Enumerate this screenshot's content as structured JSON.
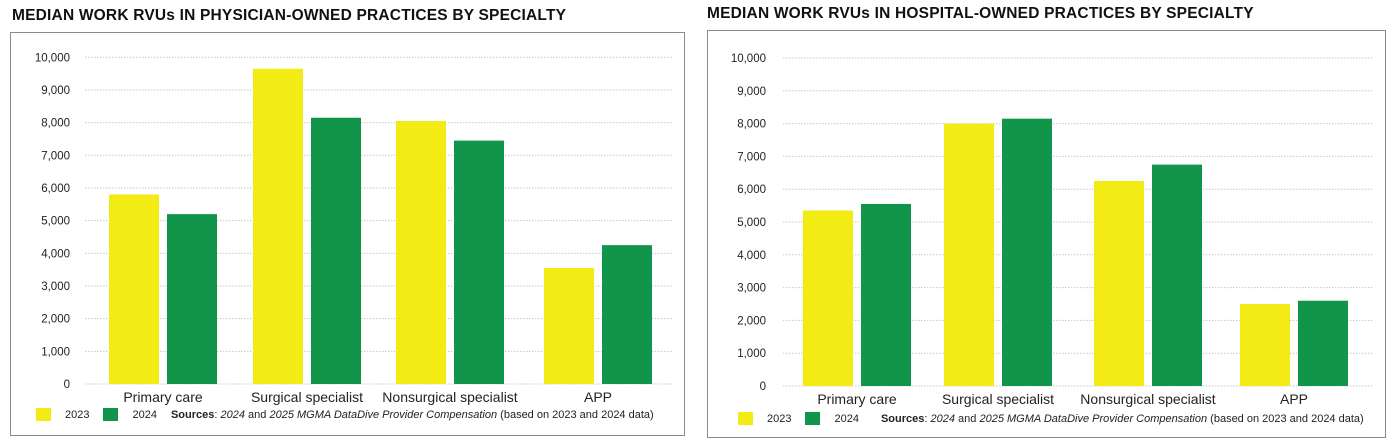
{
  "colors": {
    "2023": "#f2eb14",
    "2024": "#11954a",
    "grid": "#c8c8c8",
    "border": "#8a8a8a"
  },
  "source": {
    "label": "Sources",
    "sep": ": ",
    "pub1": "2024",
    "and1": " and ",
    "pub2": "2025 MGMA DataDive Provider Compensation",
    "tail": " (based on 2023 and 2024 data)"
  },
  "chart_data": [
    {
      "type": "bar",
      "title": "MEDIAN WORK RVUs IN PHYSICIAN-OWNED PRACTICES BY SPECIALTY",
      "xlabel": "",
      "ylabel": "",
      "ylim": [
        0,
        10000
      ],
      "yticks": [
        "0",
        "1,000",
        "2,000",
        "3,000",
        "4,000",
        "5,000",
        "6,000",
        "7,000",
        "8,000",
        "9,000",
        "10,000"
      ],
      "grid": true,
      "legend": "bottom-left",
      "categories": [
        "Primary care",
        "Surgical specialist",
        "Nonsurgical specialist",
        "APP"
      ],
      "series": [
        {
          "name": "2023",
          "values": [
            5800,
            9650,
            8050,
            3550
          ]
        },
        {
          "name": "2024",
          "values": [
            5200,
            8150,
            7450,
            4250
          ]
        }
      ]
    },
    {
      "type": "bar",
      "title": "MEDIAN WORK RVUs IN HOSPITAL-OWNED PRACTICES BY SPECIALTY",
      "xlabel": "",
      "ylabel": "",
      "ylim": [
        0,
        10000
      ],
      "yticks": [
        "0",
        "1,000",
        "2,000",
        "3,000",
        "4,000",
        "5,000",
        "6,000",
        "7,000",
        "8,000",
        "9,000",
        "10,000"
      ],
      "grid": true,
      "legend": "bottom-left",
      "categories": [
        "Primary care",
        "Surgical specialist",
        "Nonsurgical specialist",
        "APP"
      ],
      "series": [
        {
          "name": "2023",
          "values": [
            5350,
            8000,
            6250,
            2500
          ]
        },
        {
          "name": "2024",
          "values": [
            5550,
            8150,
            6750,
            2600
          ]
        }
      ]
    }
  ]
}
